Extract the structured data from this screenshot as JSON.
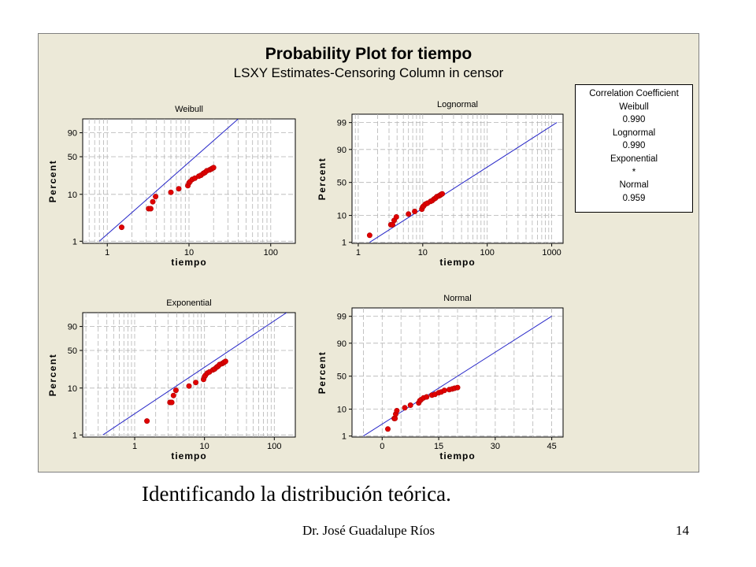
{
  "figure": {
    "title": "Probability Plot for tiempo",
    "subtitle": "LSXY Estimates-Censoring Column in censor"
  },
  "legend": {
    "header": "Correlation Coefficient",
    "entries": [
      {
        "name": "Weibull",
        "value": "0.990"
      },
      {
        "name": "Lognormal",
        "value": "0.990"
      },
      {
        "name": "Exponential",
        "value": "*"
      },
      {
        "name": "Normal",
        "value": "0.959"
      }
    ]
  },
  "caption": "Identificando la distribución teórica.",
  "footer": {
    "author": "Dr. José Guadalupe Ríos",
    "page": "14"
  },
  "colors": {
    "background": "#ece9d8",
    "line": "#2828c8",
    "points": "#e00000",
    "grid": "#b4b4b4"
  },
  "chart_data": [
    {
      "type": "scatter",
      "title": "Weibull",
      "xlabel": "tiempo",
      "ylabel": "Percent",
      "xscale": "log",
      "yscale": "weibull",
      "xlim": [
        0.5,
        200
      ],
      "ylim": [
        1,
        99
      ],
      "xticks": [
        1,
        10,
        100
      ],
      "xticklabels": [
        "1",
        "10",
        "100"
      ],
      "yticks": [
        1,
        10,
        50,
        90
      ],
      "yticklabels": [
        "1",
        "10",
        "50",
        "90"
      ],
      "grid": true,
      "fit_line": [
        [
          0.8,
          1
        ],
        [
          40,
          99
        ]
      ],
      "points": [
        [
          1.5,
          2
        ],
        [
          3.2,
          5
        ],
        [
          3.4,
          5
        ],
        [
          3.6,
          7
        ],
        [
          3.9,
          9
        ],
        [
          6,
          11
        ],
        [
          7.5,
          13
        ],
        [
          9.7,
          15
        ],
        [
          10,
          17
        ],
        [
          10.3,
          18
        ],
        [
          11,
          20
        ],
        [
          11.8,
          21
        ],
        [
          13.2,
          23
        ],
        [
          14,
          24
        ],
        [
          15,
          26
        ],
        [
          15.7,
          27
        ],
        [
          16.5,
          29
        ],
        [
          17.8,
          30
        ],
        [
          18.6,
          31
        ],
        [
          19.2,
          32
        ],
        [
          20,
          33
        ]
      ]
    },
    {
      "type": "scatter",
      "title": "Lognormal",
      "xlabel": "tiempo",
      "ylabel": "Percent",
      "xscale": "log",
      "yscale": "normal-probability",
      "xlim": [
        0.8,
        1500
      ],
      "ylim": [
        1,
        99
      ],
      "xticks": [
        1,
        10,
        100,
        1000
      ],
      "xticklabels": [
        "1",
        "10",
        "100",
        "1000"
      ],
      "yticks": [
        1,
        10,
        50,
        90,
        99
      ],
      "yticklabels": [
        "1",
        "10",
        "50",
        "90",
        "99"
      ],
      "grid": true,
      "fit_line": [
        [
          1.5,
          1
        ],
        [
          1200,
          99
        ]
      ],
      "points": [
        [
          1.5,
          2
        ],
        [
          3.2,
          5
        ],
        [
          3.4,
          5
        ],
        [
          3.6,
          7
        ],
        [
          3.9,
          9
        ],
        [
          6,
          11
        ],
        [
          7.5,
          13
        ],
        [
          9.7,
          15
        ],
        [
          10,
          17
        ],
        [
          10.3,
          18
        ],
        [
          11,
          20
        ],
        [
          11.8,
          21
        ],
        [
          13.2,
          23
        ],
        [
          14,
          24
        ],
        [
          15,
          26
        ],
        [
          15.7,
          27
        ],
        [
          16.5,
          29
        ],
        [
          17.8,
          30
        ],
        [
          18.6,
          31
        ],
        [
          19.2,
          32
        ],
        [
          20,
          33
        ]
      ]
    },
    {
      "type": "scatter",
      "title": "Exponential",
      "xlabel": "tiempo",
      "ylabel": "Percent",
      "xscale": "log",
      "yscale": "weibull",
      "xlim": [
        0.18,
        200
      ],
      "ylim": [
        1,
        99
      ],
      "xticks": [
        1,
        10,
        100
      ],
      "xticklabels": [
        "1",
        "10",
        "100"
      ],
      "yticks": [
        1,
        10,
        50,
        90
      ],
      "yticklabels": [
        "1",
        "10",
        "50",
        "90"
      ],
      "grid": true,
      "fit_line": [
        [
          0.35,
          1
        ],
        [
          150,
          99
        ]
      ],
      "points": [
        [
          1.5,
          2
        ],
        [
          3.2,
          5
        ],
        [
          3.4,
          5
        ],
        [
          3.6,
          7
        ],
        [
          3.9,
          9
        ],
        [
          6,
          11
        ],
        [
          7.5,
          13
        ],
        [
          9.7,
          15
        ],
        [
          10,
          17
        ],
        [
          10.3,
          18
        ],
        [
          11,
          20
        ],
        [
          11.8,
          21
        ],
        [
          13.2,
          23
        ],
        [
          14,
          24
        ],
        [
          15,
          26
        ],
        [
          15.7,
          27
        ],
        [
          16.5,
          29
        ],
        [
          17.8,
          30
        ],
        [
          18.6,
          31
        ],
        [
          19.2,
          32
        ],
        [
          20,
          33
        ]
      ]
    },
    {
      "type": "scatter",
      "title": "Normal",
      "xlabel": "tiempo",
      "ylabel": "Percent",
      "xscale": "linear",
      "yscale": "normal-probability",
      "xlim": [
        -8,
        48
      ],
      "ylim": [
        1,
        99
      ],
      "xticks": [
        0,
        15,
        30,
        45
      ],
      "xticklabels": [
        "0",
        "15",
        "30",
        "45"
      ],
      "yticks": [
        1,
        10,
        50,
        90,
        99
      ],
      "yticklabels": [
        "1",
        "10",
        "50",
        "90",
        "99"
      ],
      "grid": true,
      "fit_line": [
        [
          -5,
          1
        ],
        [
          45,
          99
        ]
      ],
      "points": [
        [
          1.5,
          2
        ],
        [
          3.2,
          5
        ],
        [
          3.4,
          5
        ],
        [
          3.6,
          7
        ],
        [
          3.9,
          9
        ],
        [
          6,
          11
        ],
        [
          7.5,
          13
        ],
        [
          9.7,
          15
        ],
        [
          10,
          17
        ],
        [
          10.3,
          18
        ],
        [
          11,
          20
        ],
        [
          11.8,
          21
        ],
        [
          13.2,
          23
        ],
        [
          14,
          24
        ],
        [
          15,
          26
        ],
        [
          15.7,
          27
        ],
        [
          16.5,
          29
        ],
        [
          17.8,
          30
        ],
        [
          18.6,
          31
        ],
        [
          19.2,
          32
        ],
        [
          20,
          33
        ]
      ]
    }
  ]
}
